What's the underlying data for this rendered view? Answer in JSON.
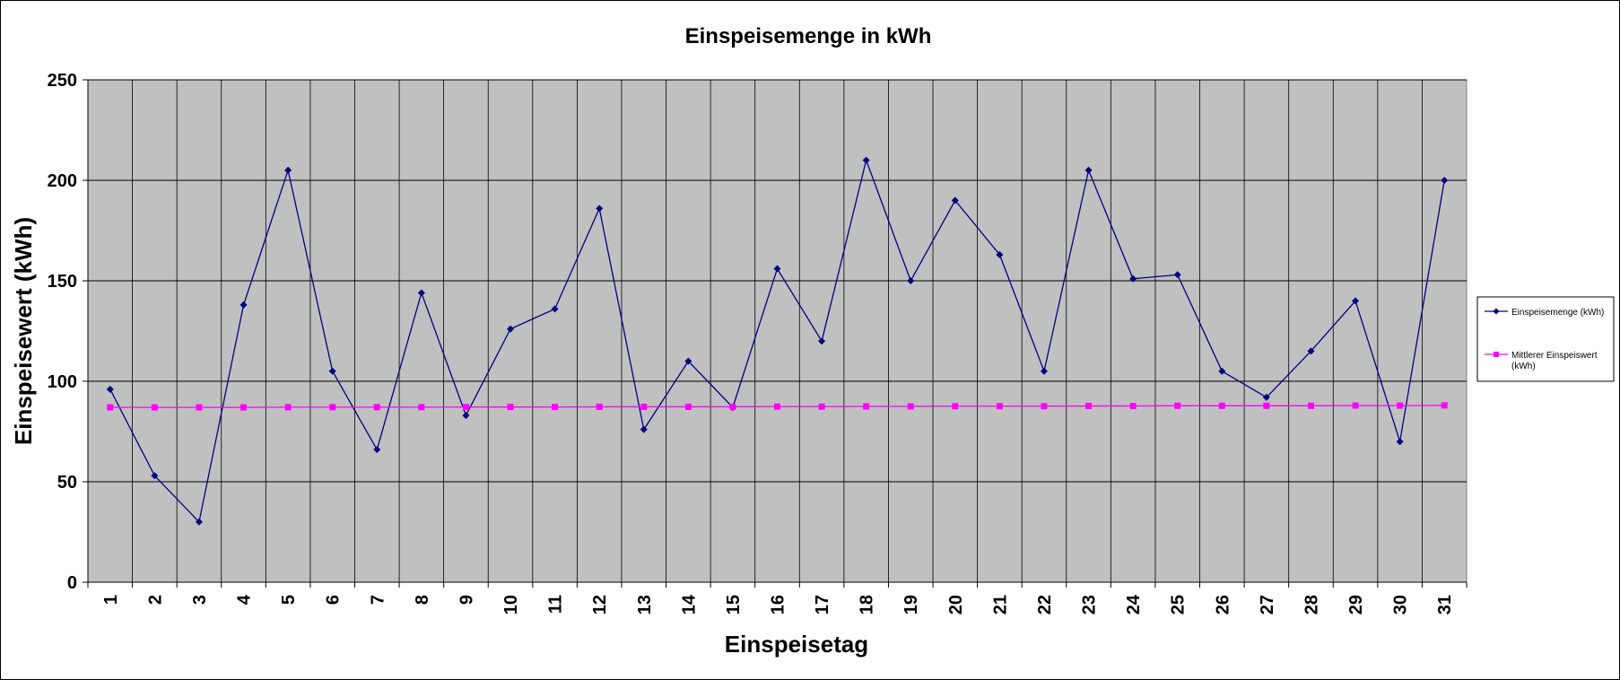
{
  "chart_data": {
    "type": "line",
    "title": "Einspeisemenge in kWh",
    "xlabel": "Einspeisetag",
    "ylabel": "Einspeisewert  (kWh)",
    "ylim": [
      0,
      250
    ],
    "yticks": [
      0,
      50,
      100,
      150,
      200,
      250
    ],
    "categories": [
      "1",
      "2",
      "3",
      "4",
      "5",
      "6",
      "7",
      "8",
      "9",
      "10",
      "11",
      "12",
      "13",
      "14",
      "15",
      "16",
      "17",
      "18",
      "19",
      "20",
      "21",
      "22",
      "23",
      "24",
      "25",
      "26",
      "27",
      "28",
      "29",
      "30",
      "31"
    ],
    "grid": true,
    "plot_background": "#c0c0c0",
    "legend_position": "right",
    "series": [
      {
        "name": "Einspeisemenge (kWh)",
        "color": "#000080",
        "marker": "diamond",
        "values": [
          96,
          53,
          30,
          138,
          205,
          105,
          66,
          144,
          83,
          126,
          136,
          186,
          76,
          110,
          87,
          156,
          120,
          210,
          150,
          190,
          163,
          105,
          205,
          151,
          153,
          105,
          92,
          115,
          140,
          70,
          200
        ]
      },
      {
        "name": "Mittlerer Einspeiswert (kWh)",
        "legend_lines": [
          "Mittlerer Einspeiswert",
          "(kWh)"
        ],
        "color": "#ff00ff",
        "marker": "square",
        "values": [
          87,
          87,
          87,
          87,
          87.1,
          87.1,
          87.1,
          87.1,
          87.2,
          87.2,
          87.2,
          87.3,
          87.3,
          87.3,
          87.3,
          87.4,
          87.4,
          87.5,
          87.5,
          87.6,
          87.6,
          87.6,
          87.7,
          87.7,
          87.8,
          87.8,
          87.8,
          87.8,
          87.9,
          87.9,
          88
        ]
      }
    ]
  }
}
